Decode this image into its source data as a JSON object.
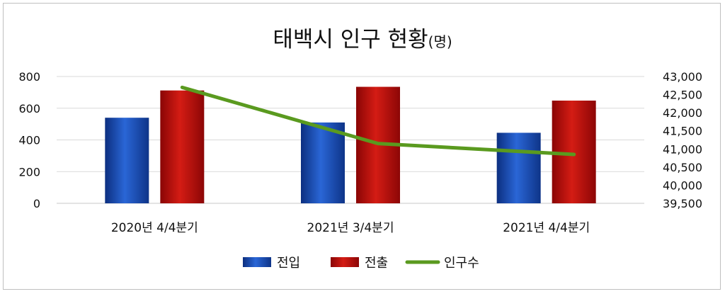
{
  "chart_data": {
    "type": "bar",
    "title": "태백시 인구 현황",
    "title_unit": "(명)",
    "categories": [
      "2020년 4/4분기",
      "2021년 3/4분기",
      "2021년 4/4분기"
    ],
    "series": [
      {
        "name": "전입",
        "type": "bar",
        "axis": "left",
        "color": "#1a4fb5",
        "values": [
          540,
          510,
          445
        ]
      },
      {
        "name": "전출",
        "type": "bar",
        "axis": "left",
        "color": "#b80f0f",
        "values": [
          712,
          735,
          648
        ]
      },
      {
        "name": "인구수",
        "type": "line",
        "axis": "right",
        "color": "#5a9a1f",
        "values": [
          42700,
          41150,
          40850
        ]
      }
    ],
    "y_left": {
      "ylim": [
        0,
        800
      ],
      "ticks": [
        "0",
        "200",
        "400",
        "600",
        "800"
      ]
    },
    "y_right": {
      "ylim": [
        39500,
        43000
      ],
      "ticks": [
        "39,500",
        "40,000",
        "40,500",
        "41,000",
        "41,500",
        "42,000",
        "42,500",
        "43,000"
      ]
    },
    "grid": true,
    "legend_position": "bottom"
  }
}
